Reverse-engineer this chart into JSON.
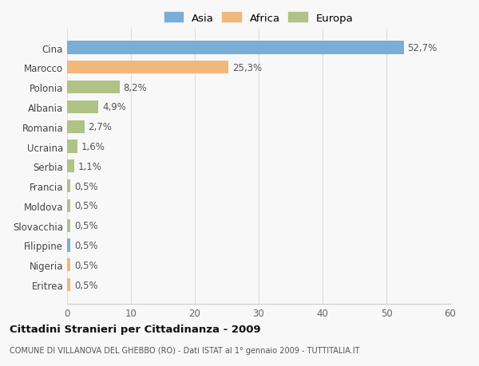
{
  "categories": [
    "Eritrea",
    "Nigeria",
    "Filippine",
    "Slovacchia",
    "Moldova",
    "Francia",
    "Serbia",
    "Ucraina",
    "Romania",
    "Albania",
    "Polonia",
    "Marocco",
    "Cina"
  ],
  "values": [
    0.5,
    0.5,
    0.5,
    0.5,
    0.5,
    0.5,
    1.1,
    1.6,
    2.7,
    4.9,
    8.2,
    25.3,
    52.7
  ],
  "labels": [
    "0,5%",
    "0,5%",
    "0,5%",
    "0,5%",
    "0,5%",
    "0,5%",
    "1,1%",
    "1,6%",
    "2,7%",
    "4,9%",
    "8,2%",
    "25,3%",
    "52,7%"
  ],
  "colors": [
    "#f0b87a",
    "#f0b87a",
    "#7aaed6",
    "#b0c285",
    "#b0c285",
    "#b0c285",
    "#b0c285",
    "#b0c285",
    "#b0c285",
    "#b0c285",
    "#b0c285",
    "#f0b87a",
    "#7aaed6"
  ],
  "legend": [
    {
      "label": "Asia",
      "color": "#7aaed6"
    },
    {
      "label": "Africa",
      "color": "#f0b87a"
    },
    {
      "label": "Europa",
      "color": "#b0c285"
    }
  ],
  "xlim": [
    0,
    60
  ],
  "xticks": [
    0,
    10,
    20,
    30,
    40,
    50,
    60
  ],
  "title_bold": "Cittadini Stranieri per Cittadinanza - 2009",
  "subtitle": "COMUNE DI VILLANOVA DEL GHEBBO (RO) - Dati ISTAT al 1° gennaio 2009 - TUTTITALIA.IT",
  "bg_color": "#f8f8f8",
  "bar_height": 0.65,
  "grid_color": "#dddddd",
  "label_fontsize": 8.5,
  "tick_fontsize": 8.5,
  "legend_fontsize": 9.5
}
